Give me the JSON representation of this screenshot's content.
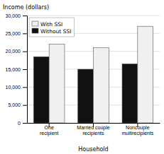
{
  "chart_data": {
    "type": "bar",
    "categories": [
      "One\nrecipient",
      "Married couple\nrecipients",
      "Noncouple\nmultirecipients"
    ],
    "series": [
      {
        "name": "Without SSI",
        "color": "#111111",
        "values": [
          18500,
          15000,
          16500
        ]
      },
      {
        "name": "With SSI",
        "color": "#f0f0f0",
        "values": [
          22000,
          21000,
          27000
        ]
      }
    ],
    "y_label": "Income (dollars)",
    "x_label": "Household",
    "ylim": [
      0,
      30000
    ],
    "yticks": [
      0,
      {
        "value": 5000,
        "label": "5,000"
      },
      {
        "value": 10000,
        "label": "10,000"
      },
      {
        "value": 15000,
        "label": "15,000"
      },
      {
        "value": 20000,
        "label": "20,000"
      },
      {
        "value": 25000,
        "label": "25,000"
      },
      {
        "value": 30000,
        "label": "30,000"
      }
    ],
    "grid": true,
    "legend": "upper left"
  }
}
